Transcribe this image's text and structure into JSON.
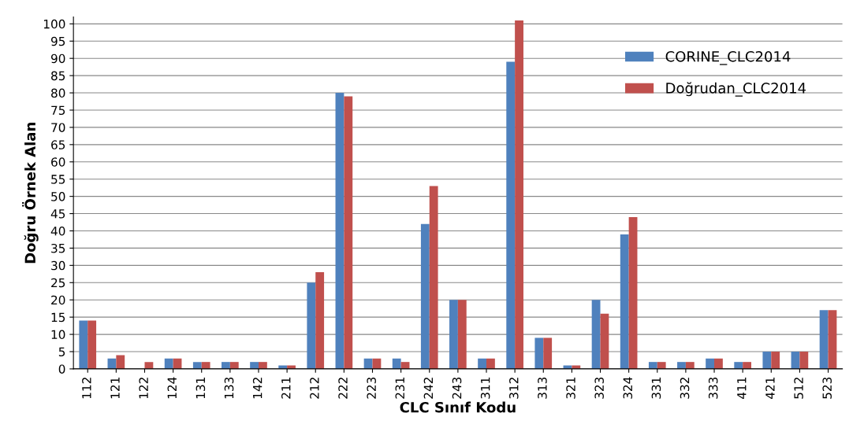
{
  "chart_data": {
    "type": "bar",
    "xlabel": "CLC Sınıf Kodu",
    "ylabel": "Doğru Örnek Alan",
    "categories": [
      "112",
      "121",
      "122",
      "124",
      "131",
      "133",
      "142",
      "211",
      "212",
      "222",
      "223",
      "231",
      "242",
      "243",
      "311",
      "312",
      "313",
      "321",
      "323",
      "324",
      "331",
      "332",
      "333",
      "411",
      "421",
      "512",
      "523"
    ],
    "series": [
      {
        "name": "CORINE_CLC2014",
        "color": "#4f81bd",
        "values": [
          14,
          3,
          0,
          3,
          2,
          2,
          2,
          1,
          25,
          80,
          3,
          3,
          42,
          20,
          3,
          89,
          9,
          1,
          20,
          39,
          2,
          2,
          3,
          2,
          5,
          5,
          17
        ]
      },
      {
        "name": "Doğrudan_CLC2014",
        "color": "#c0504d",
        "values": [
          14,
          4,
          2,
          3,
          2,
          2,
          2,
          1,
          28,
          79,
          3,
          2,
          53,
          20,
          3,
          101,
          9,
          1,
          16,
          44,
          2,
          2,
          3,
          2,
          5,
          5,
          17
        ]
      }
    ],
    "ylim": [
      0,
      102
    ],
    "yticks": [
      0,
      5,
      10,
      15,
      20,
      25,
      30,
      35,
      40,
      45,
      50,
      55,
      60,
      65,
      70,
      75,
      80,
      85,
      90,
      95,
      100
    ],
    "grid": "y",
    "legend": "top right"
  }
}
